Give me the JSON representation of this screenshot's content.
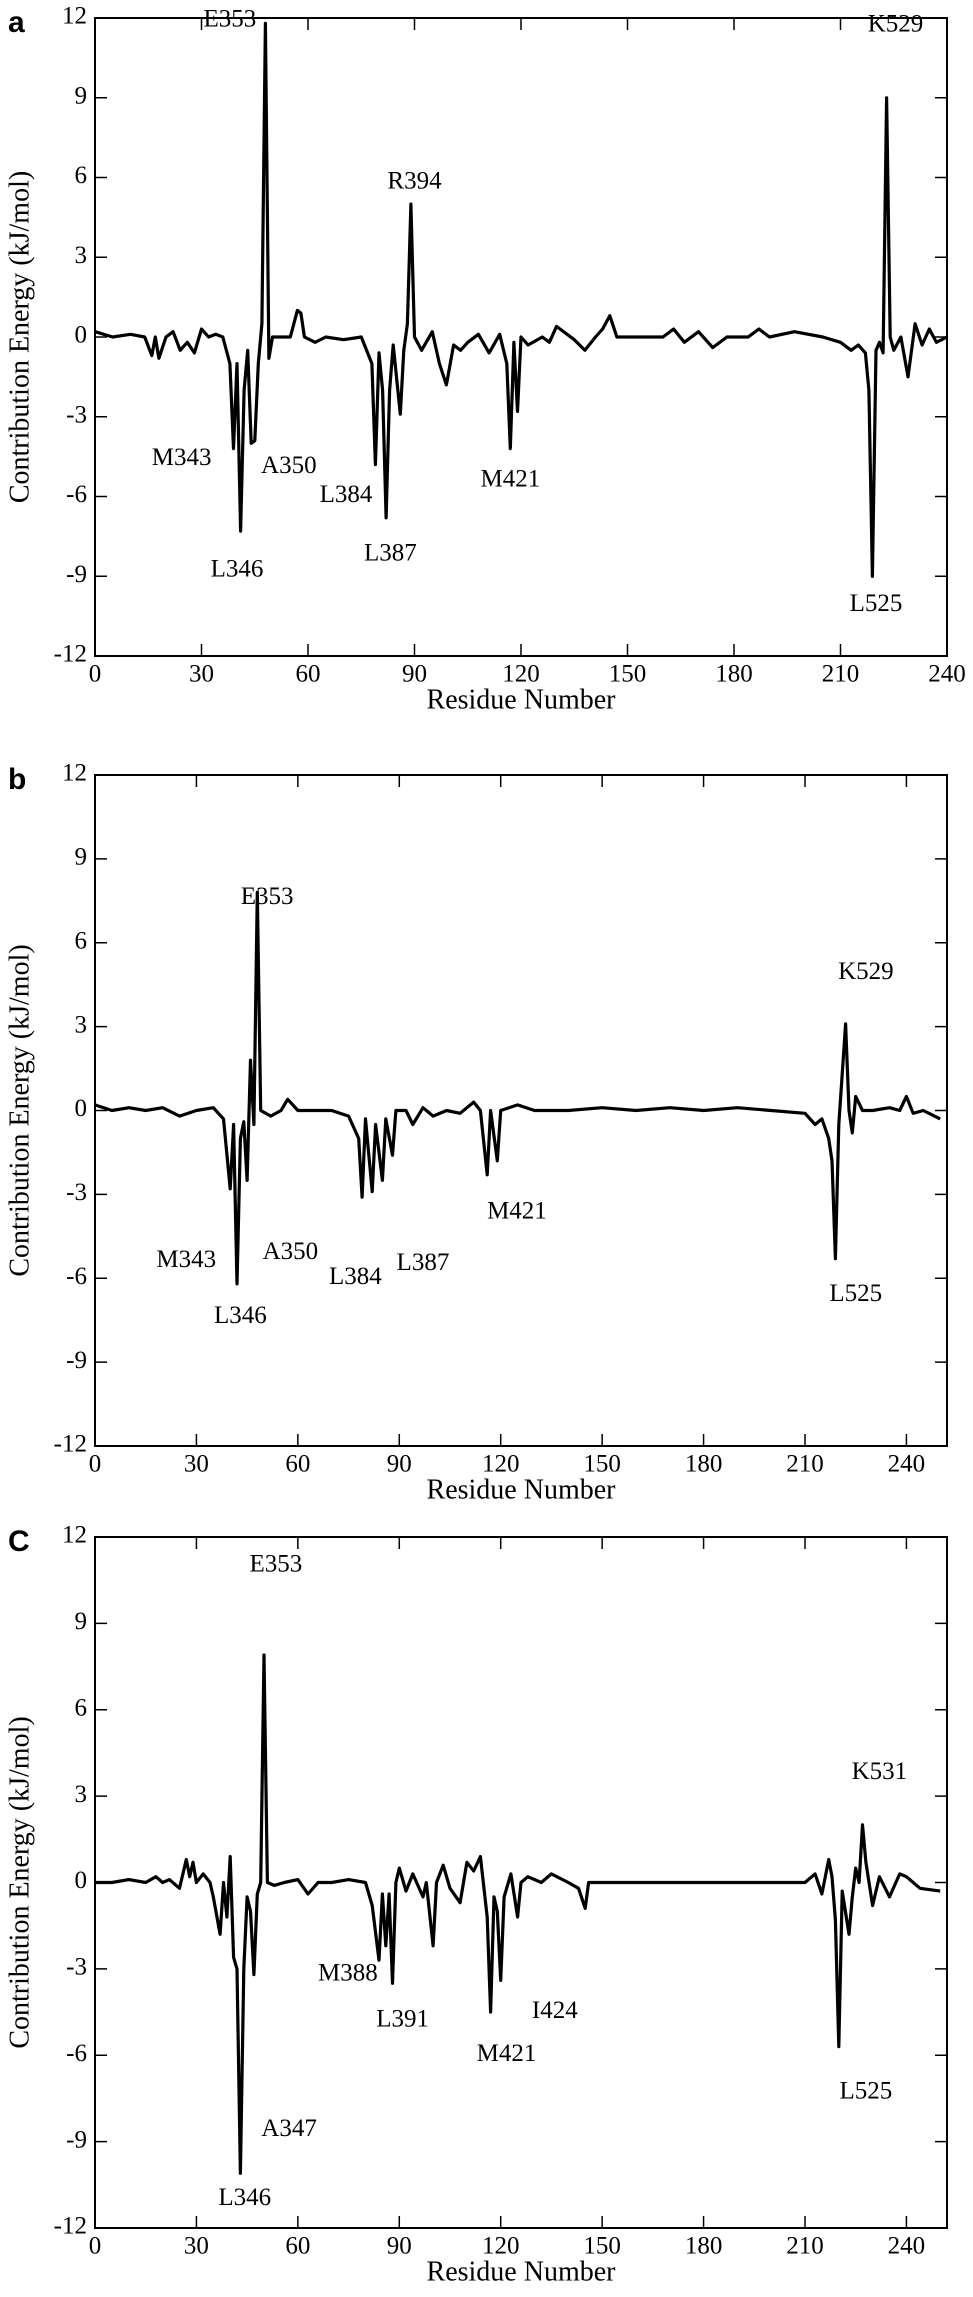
{
  "chart_data": [
    {
      "type": "line",
      "panel": "a",
      "xlabel": "Residue Number",
      "ylabel": "Contribution Energy (kJ/mol)",
      "color": "#000000",
      "xlim": [
        0,
        240
      ],
      "ylim": [
        -12,
        12
      ],
      "xticks": [
        0,
        30,
        60,
        90,
        120,
        150,
        180,
        210,
        240
      ],
      "yticks": [
        -12,
        -9,
        -6,
        -3,
        0,
        3,
        6,
        9,
        12
      ],
      "x": [
        0,
        5,
        10,
        14,
        16,
        17,
        18,
        20,
        22,
        24,
        26,
        28,
        30,
        32,
        34,
        36,
        38,
        39,
        40,
        41,
        42,
        43,
        44,
        45,
        46,
        47,
        48,
        49,
        50,
        55,
        57,
        58,
        59,
        62,
        65,
        70,
        75,
        78,
        79,
        80,
        81,
        82,
        83,
        84,
        86,
        87,
        88,
        89,
        90,
        92,
        95,
        97,
        99,
        101,
        103,
        105,
        108,
        111,
        114,
        116,
        117,
        118,
        119,
        120,
        122,
        126,
        128,
        130,
        135,
        138,
        141,
        143,
        145,
        147,
        150,
        160,
        163,
        166,
        170,
        174,
        178,
        184,
        187,
        190,
        197,
        205,
        210,
        213,
        215,
        217,
        218,
        219,
        220,
        221,
        222,
        223,
        224,
        225,
        227,
        229,
        231,
        233,
        235,
        237,
        240
      ],
      "values": [
        0.2,
        0,
        0.1,
        0,
        -0.7,
        0,
        -0.8,
        0,
        0.2,
        -0.5,
        -0.2,
        -0.6,
        0.3,
        0,
        0.1,
        0,
        -1,
        -4.2,
        -1,
        -7.3,
        -2,
        -0.5,
        -4,
        -3.9,
        -1,
        0.5,
        11.8,
        -0.8,
        0,
        0,
        1,
        0.9,
        0,
        -0.2,
        0,
        -0.1,
        0,
        -1,
        -4.8,
        -0.6,
        -2,
        -6.8,
        -2,
        -0.3,
        -2.9,
        -0.5,
        0.5,
        5,
        0,
        -0.5,
        0.2,
        -1,
        -1.8,
        -0.3,
        -0.5,
        -0.2,
        0.1,
        -0.6,
        0.1,
        -1,
        -4.2,
        -0.2,
        -2.8,
        0,
        -0.3,
        0,
        -0.2,
        0.4,
        -0.1,
        -0.5,
        0,
        0.3,
        0.8,
        0,
        0,
        0,
        0.3,
        -0.2,
        0.2,
        -0.4,
        0,
        0,
        0.3,
        0,
        0.2,
        0,
        -0.2,
        -0.5,
        -0.3,
        -0.6,
        -2,
        -9,
        -0.5,
        -0.2,
        -0.6,
        9,
        0,
        -0.5,
        0,
        -1.5,
        0.5,
        -0.3,
        0.3,
        -0.2,
        0
      ],
      "annotations": [
        {
          "text": "E353",
          "x": 38,
          "y": 11.9
        },
        {
          "text": "K529",
          "x": 225.5,
          "y": 11.7
        },
        {
          "text": "R394",
          "x": 90,
          "y": 5.8
        },
        {
          "text": "M343",
          "x": 24.4,
          "y": -4.6
        },
        {
          "text": "A350",
          "x": 54.6,
          "y": -4.9
        },
        {
          "text": "L384",
          "x": 70.7,
          "y": -6.0
        },
        {
          "text": "L387",
          "x": 83.2,
          "y": -8.2
        },
        {
          "text": "L346",
          "x": 40,
          "y": -8.8
        },
        {
          "text": "M421",
          "x": 117,
          "y": -5.4
        },
        {
          "text": "L525",
          "x": 220,
          "y": -10.1
        }
      ]
    },
    {
      "type": "line",
      "panel": "b",
      "xlabel": "Residue Number",
      "ylabel": "Contribution Energy (kJ/mol)",
      "color": "#000000",
      "xlim": [
        0,
        252
      ],
      "ylim": [
        -12,
        12
      ],
      "xticks": [
        0,
        30,
        60,
        90,
        120,
        150,
        180,
        210,
        240
      ],
      "yticks": [
        -12,
        -9,
        -6,
        -3,
        0,
        3,
        6,
        9,
        12
      ],
      "x": [
        0,
        5,
        10,
        15,
        20,
        25,
        30,
        35,
        38,
        40,
        41,
        42,
        43,
        44,
        45,
        46,
        47,
        48,
        49,
        52,
        55,
        57,
        60,
        65,
        70,
        75,
        78,
        79,
        80,
        82,
        83,
        85,
        86,
        88,
        89,
        92,
        94,
        97,
        100,
        104,
        108,
        112,
        114,
        116,
        117,
        119,
        120,
        125,
        130,
        140,
        150,
        160,
        170,
        180,
        190,
        200,
        210,
        213,
        215,
        217,
        218,
        219,
        220,
        222,
        223,
        224,
        225,
        227,
        230,
        235,
        238,
        240,
        242,
        245,
        250
      ],
      "values": [
        0.2,
        0,
        0.1,
        0,
        0.1,
        -0.2,
        0,
        0.1,
        -0.3,
        -2.8,
        -0.5,
        -6.2,
        -1,
        -0.4,
        -2.5,
        1.8,
        -0.5,
        7.8,
        0,
        -0.2,
        0,
        0.4,
        0,
        0,
        0,
        -0.2,
        -1,
        -3.1,
        -0.3,
        -2.9,
        -0.5,
        -2.5,
        -0.3,
        -1.6,
        0,
        0,
        -0.5,
        0.1,
        -0.2,
        0,
        -0.1,
        0.3,
        0,
        -2.3,
        0,
        -1.8,
        0,
        0.2,
        0,
        0,
        0.1,
        0,
        0.1,
        0,
        0.1,
        0,
        -0.1,
        -0.5,
        -0.3,
        -1,
        -1.8,
        -5.3,
        -0.5,
        3.1,
        0,
        -0.8,
        0.5,
        0,
        0,
        0.1,
        0,
        0.5,
        -0.1,
        0,
        -0.3
      ],
      "annotations": [
        {
          "text": "E353",
          "x": 50.9,
          "y": 7.6
        },
        {
          "text": "K529",
          "x": 228,
          "y": 4.9
        },
        {
          "text": "M343",
          "x": 27,
          "y": -5.4
        },
        {
          "text": "A350",
          "x": 57.8,
          "y": -5.1
        },
        {
          "text": "L346",
          "x": 43,
          "y": -7.4
        },
        {
          "text": "L384",
          "x": 77,
          "y": -6.0
        },
        {
          "text": "L387",
          "x": 97,
          "y": -5.5
        },
        {
          "text": "M421",
          "x": 124.8,
          "y": -3.65
        },
        {
          "text": "L525",
          "x": 225,
          "y": -6.6
        }
      ]
    },
    {
      "type": "line",
      "panel": "C",
      "xlabel": "Residue Number",
      "ylabel": "Contribution Energy (kJ/mol)",
      "color": "#000000",
      "xlim": [
        0,
        252
      ],
      "ylim": [
        -12,
        12
      ],
      "xticks": [
        0,
        30,
        60,
        90,
        120,
        150,
        180,
        210,
        240
      ],
      "yticks": [
        -12,
        -9,
        -6,
        -3,
        0,
        3,
        6,
        9,
        12
      ],
      "x": [
        0,
        5,
        10,
        15,
        18,
        20,
        22,
        25,
        27,
        28,
        29,
        30,
        32,
        34,
        35,
        37,
        38,
        39,
        40,
        41,
        42,
        43,
        44,
        45,
        46,
        47,
        48,
        49,
        50,
        51,
        53,
        56,
        60,
        63,
        66,
        70,
        75,
        80,
        82,
        84,
        85,
        86,
        87,
        88,
        89,
        90,
        92,
        94,
        97,
        98,
        100,
        101,
        103,
        105,
        108,
        110,
        112,
        114,
        116,
        117,
        118,
        119,
        120,
        121,
        123,
        125,
        126,
        128,
        132,
        135,
        140,
        143,
        145,
        146,
        150,
        160,
        170,
        180,
        190,
        200,
        210,
        213,
        215,
        217,
        218,
        219,
        220,
        221,
        223,
        224,
        225,
        226,
        227,
        228,
        230,
        232,
        235,
        238,
        240,
        244,
        250
      ],
      "values": [
        0,
        0,
        0.1,
        0,
        0.2,
        0,
        0.1,
        -0.2,
        0.8,
        0.2,
        0.7,
        0,
        0.3,
        0,
        -0.5,
        -1.8,
        0,
        -1.2,
        0.9,
        -2.6,
        -3,
        -10.1,
        -3,
        -0.5,
        -1,
        -3.2,
        -0.4,
        0,
        7.9,
        0,
        -0.1,
        0,
        0.1,
        -0.4,
        0,
        0,
        0.1,
        0,
        -0.8,
        -2.7,
        -0.4,
        -2.2,
        -0.4,
        -3.5,
        0,
        0.5,
        -0.3,
        0.3,
        -0.5,
        0,
        -2.2,
        0,
        0.6,
        -0.2,
        -0.7,
        0.7,
        0.4,
        0.9,
        -1.2,
        -4.5,
        -0.5,
        -1,
        -3.4,
        -0.5,
        0.3,
        -1.2,
        0,
        0.2,
        0,
        0.3,
        0,
        -0.2,
        -0.9,
        0,
        0,
        0,
        0,
        0,
        0,
        0,
        0,
        0.3,
        -0.4,
        0.8,
        0.2,
        -1.3,
        -5.7,
        -0.3,
        -1.8,
        -0.5,
        0.5,
        0,
        2,
        0.7,
        -0.8,
        0.2,
        -0.5,
        0.3,
        0.2,
        -0.2,
        -0.3
      ],
      "annotations": [
        {
          "text": "E353",
          "x": 53.5,
          "y": 11.0
        },
        {
          "text": "K531",
          "x": 232,
          "y": 3.8
        },
        {
          "text": "M388",
          "x": 74.8,
          "y": -3.2
        },
        {
          "text": "L391",
          "x": 91,
          "y": -4.8
        },
        {
          "text": "M421",
          "x": 121.7,
          "y": -6.0
        },
        {
          "text": "I424",
          "x": 136,
          "y": -4.5
        },
        {
          "text": "A347",
          "x": 57.4,
          "y": -8.6
        },
        {
          "text": "L346",
          "x": 44.3,
          "y": -11.0
        },
        {
          "text": "L525",
          "x": 228,
          "y": -7.3
        }
      ]
    }
  ]
}
